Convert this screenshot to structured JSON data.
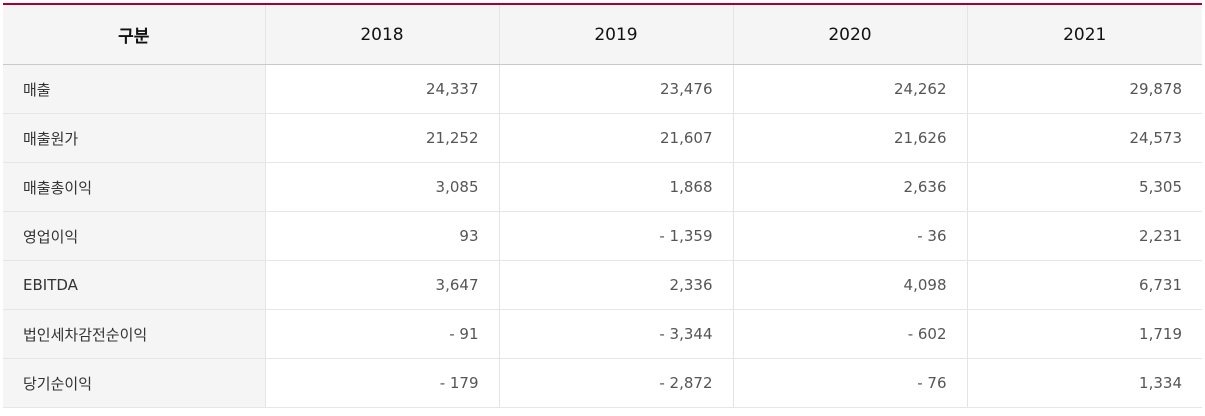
{
  "table": {
    "headers": [
      "구분",
      "2018",
      "2019",
      "2020",
      "2021"
    ],
    "rows": [
      {
        "label": "매출",
        "values": [
          "24,337",
          "23,476",
          "24,262",
          "29,878"
        ]
      },
      {
        "label": "매출원가",
        "values": [
          "21,252",
          "21,607",
          "21,626",
          "24,573"
        ]
      },
      {
        "label": "매출총이익",
        "values": [
          "3,085",
          "1,868",
          "2,636",
          "5,305"
        ]
      },
      {
        "label": "영업이익",
        "values": [
          "93",
          "- 1,359",
          "- 36",
          "2,231"
        ]
      },
      {
        "label": "EBITDA",
        "values": [
          "3,647",
          "2,336",
          "4,098",
          "6,731"
        ]
      },
      {
        "label": "법인세차감전순이익",
        "values": [
          "- 91",
          "- 3,344",
          "- 602",
          "1,719"
        ]
      },
      {
        "label": "당기순이익",
        "values": [
          "- 179",
          "- 2,872",
          "- 76",
          "1,334"
        ]
      }
    ]
  },
  "colors": {
    "accent": "#a50034",
    "header_bg": "#f5f5f5",
    "border": "#e4e4e4"
  }
}
